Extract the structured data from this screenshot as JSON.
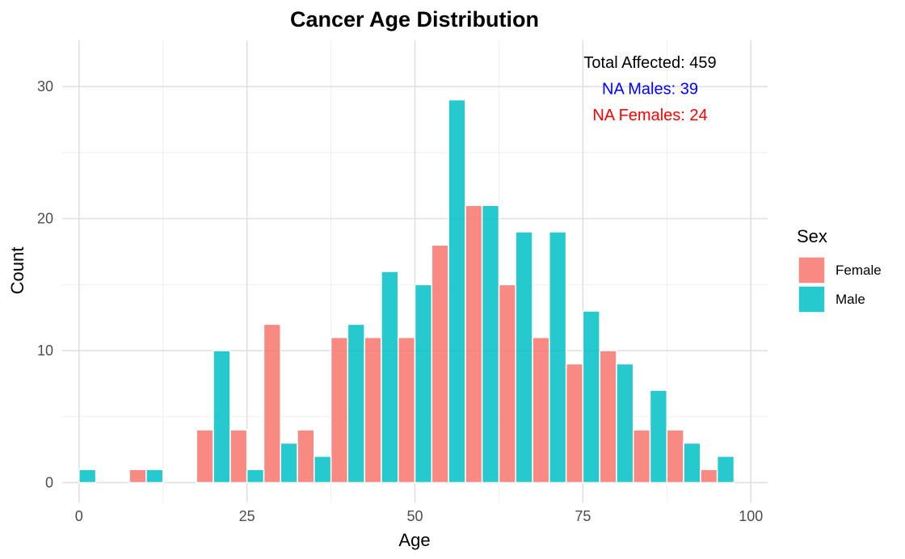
{
  "chart_data": {
    "type": "bar",
    "title": "Cancer Age Distribution",
    "xlabel": "Age",
    "ylabel": "Count",
    "xlim": [
      -2.5,
      102.5
    ],
    "ylim": [
      -1.5,
      33.5
    ],
    "x_ticks": [
      0,
      25,
      50,
      75,
      100
    ],
    "y_ticks": [
      0,
      10,
      20,
      30
    ],
    "grid": true,
    "bin_width": 2.5,
    "legend": {
      "title": "Sex",
      "position": "right",
      "entries": [
        {
          "label": "Female",
          "color": "#F8766D"
        },
        {
          "label": "Male",
          "color": "#00BFC4"
        }
      ]
    },
    "series": [
      {
        "name": "Female",
        "color": "#F8766D",
        "points": [
          {
            "x": 8.75,
            "y": 1
          },
          {
            "x": 18.75,
            "y": 4
          },
          {
            "x": 23.75,
            "y": 4
          },
          {
            "x": 28.75,
            "y": 12
          },
          {
            "x": 33.75,
            "y": 4
          },
          {
            "x": 38.75,
            "y": 11
          },
          {
            "x": 43.75,
            "y": 11
          },
          {
            "x": 48.75,
            "y": 11
          },
          {
            "x": 53.75,
            "y": 18
          },
          {
            "x": 58.75,
            "y": 21
          },
          {
            "x": 63.75,
            "y": 15
          },
          {
            "x": 68.75,
            "y": 11
          },
          {
            "x": 73.75,
            "y": 9
          },
          {
            "x": 78.75,
            "y": 10
          },
          {
            "x": 83.75,
            "y": 4
          },
          {
            "x": 88.75,
            "y": 4
          },
          {
            "x": 93.75,
            "y": 1
          }
        ]
      },
      {
        "name": "Male",
        "color": "#00BFC4",
        "points": [
          {
            "x": 1.25,
            "y": 1
          },
          {
            "x": 11.25,
            "y": 1
          },
          {
            "x": 21.25,
            "y": 10
          },
          {
            "x": 26.25,
            "y": 1
          },
          {
            "x": 31.25,
            "y": 3
          },
          {
            "x": 36.25,
            "y": 2
          },
          {
            "x": 41.25,
            "y": 12
          },
          {
            "x": 46.25,
            "y": 16
          },
          {
            "x": 51.25,
            "y": 15
          },
          {
            "x": 56.25,
            "y": 29
          },
          {
            "x": 61.25,
            "y": 21
          },
          {
            "x": 66.25,
            "y": 19
          },
          {
            "x": 71.25,
            "y": 19
          },
          {
            "x": 76.25,
            "y": 13
          },
          {
            "x": 81.25,
            "y": 9
          },
          {
            "x": 86.25,
            "y": 7
          },
          {
            "x": 91.25,
            "y": 3
          },
          {
            "x": 96.25,
            "y": 2
          }
        ]
      }
    ],
    "annotations": [
      {
        "text": "Total Affected: 459",
        "color": "#000000"
      },
      {
        "text": "NA Males: 39",
        "color": "#0000FF"
      },
      {
        "text": "NA Females: 24",
        "color": "#FF0000"
      }
    ]
  }
}
